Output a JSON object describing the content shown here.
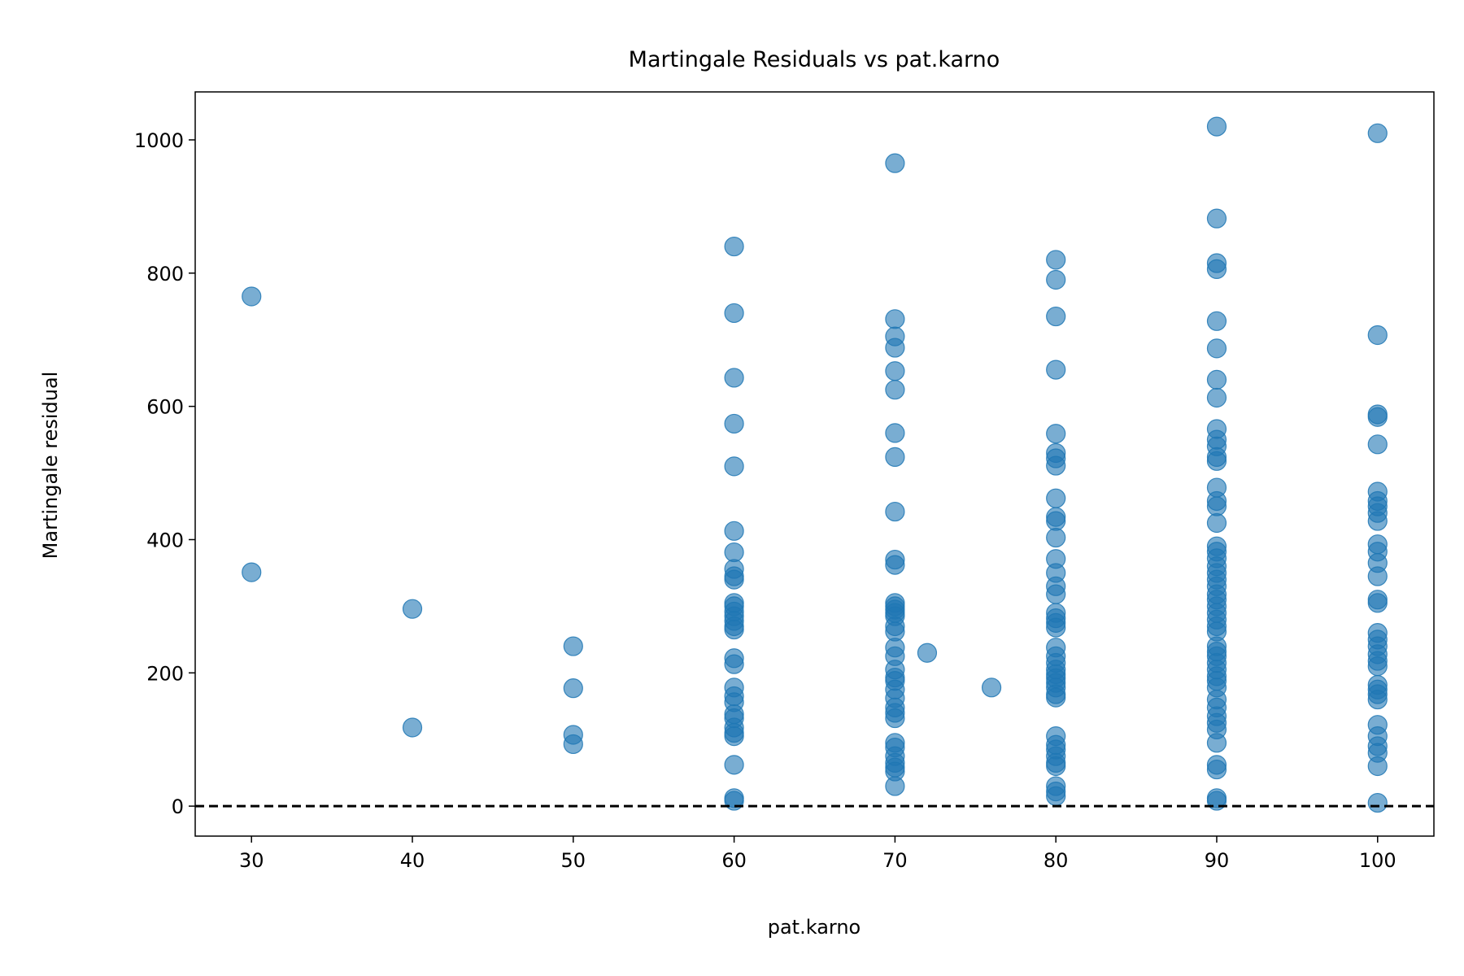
{
  "chart_data": {
    "type": "scatter",
    "title": "Martingale Residuals vs pat.karno",
    "xlabel": "pat.karno",
    "ylabel": "Martingale residual",
    "xlim": [
      26.5,
      103.5
    ],
    "ylim": [
      -45,
      1072
    ],
    "xticks": [
      30,
      40,
      50,
      60,
      70,
      80,
      90,
      100
    ],
    "yticks": [
      0,
      200,
      400,
      600,
      800,
      1000
    ],
    "grid": false,
    "legend": "none",
    "reference_line": {
      "y": 0,
      "style": "dashed",
      "color": "#000000"
    },
    "point_color": "#1f77b4",
    "series": [
      {
        "points": [
          {
            "x": 30,
            "y": 765
          },
          {
            "x": 30,
            "y": 351
          },
          {
            "x": 40,
            "y": 296
          },
          {
            "x": 40,
            "y": 118
          },
          {
            "x": 50,
            "y": 240
          },
          {
            "x": 50,
            "y": 177
          },
          {
            "x": 50,
            "y": 107
          },
          {
            "x": 50,
            "y": 93
          },
          {
            "x": 60,
            "y": 840
          },
          {
            "x": 60,
            "y": 740
          },
          {
            "x": 60,
            "y": 643
          },
          {
            "x": 60,
            "y": 574
          },
          {
            "x": 60,
            "y": 510
          },
          {
            "x": 60,
            "y": 413
          },
          {
            "x": 60,
            "y": 381
          },
          {
            "x": 60,
            "y": 356
          },
          {
            "x": 60,
            "y": 345
          },
          {
            "x": 60,
            "y": 340
          },
          {
            "x": 60,
            "y": 305
          },
          {
            "x": 60,
            "y": 300
          },
          {
            "x": 60,
            "y": 292
          },
          {
            "x": 60,
            "y": 285
          },
          {
            "x": 60,
            "y": 278
          },
          {
            "x": 60,
            "y": 270
          },
          {
            "x": 60,
            "y": 265
          },
          {
            "x": 60,
            "y": 222
          },
          {
            "x": 60,
            "y": 213
          },
          {
            "x": 60,
            "y": 178
          },
          {
            "x": 60,
            "y": 165
          },
          {
            "x": 60,
            "y": 156
          },
          {
            "x": 60,
            "y": 138
          },
          {
            "x": 60,
            "y": 132
          },
          {
            "x": 60,
            "y": 118
          },
          {
            "x": 60,
            "y": 110
          },
          {
            "x": 60,
            "y": 105
          },
          {
            "x": 60,
            "y": 62
          },
          {
            "x": 60,
            "y": 12
          },
          {
            "x": 60,
            "y": 8
          },
          {
            "x": 70,
            "y": 965
          },
          {
            "x": 70,
            "y": 731
          },
          {
            "x": 70,
            "y": 705
          },
          {
            "x": 70,
            "y": 688
          },
          {
            "x": 70,
            "y": 653
          },
          {
            "x": 70,
            "y": 625
          },
          {
            "x": 70,
            "y": 560
          },
          {
            "x": 70,
            "y": 524
          },
          {
            "x": 70,
            "y": 442
          },
          {
            "x": 70,
            "y": 370
          },
          {
            "x": 70,
            "y": 362
          },
          {
            "x": 70,
            "y": 305
          },
          {
            "x": 70,
            "y": 300
          },
          {
            "x": 70,
            "y": 295
          },
          {
            "x": 70,
            "y": 290
          },
          {
            "x": 70,
            "y": 285
          },
          {
            "x": 70,
            "y": 270
          },
          {
            "x": 70,
            "y": 262
          },
          {
            "x": 70,
            "y": 238
          },
          {
            "x": 70,
            "y": 225
          },
          {
            "x": 70,
            "y": 205
          },
          {
            "x": 70,
            "y": 193
          },
          {
            "x": 70,
            "y": 188
          },
          {
            "x": 70,
            "y": 175
          },
          {
            "x": 70,
            "y": 162
          },
          {
            "x": 70,
            "y": 148
          },
          {
            "x": 70,
            "y": 140
          },
          {
            "x": 70,
            "y": 132
          },
          {
            "x": 70,
            "y": 95
          },
          {
            "x": 70,
            "y": 88
          },
          {
            "x": 70,
            "y": 75
          },
          {
            "x": 70,
            "y": 65
          },
          {
            "x": 70,
            "y": 58
          },
          {
            "x": 70,
            "y": 52
          },
          {
            "x": 70,
            "y": 30
          },
          {
            "x": 72,
            "y": 230
          },
          {
            "x": 76,
            "y": 178
          },
          {
            "x": 80,
            "y": 820
          },
          {
            "x": 80,
            "y": 790
          },
          {
            "x": 80,
            "y": 735
          },
          {
            "x": 80,
            "y": 655
          },
          {
            "x": 80,
            "y": 559
          },
          {
            "x": 80,
            "y": 530
          },
          {
            "x": 80,
            "y": 522
          },
          {
            "x": 80,
            "y": 511
          },
          {
            "x": 80,
            "y": 462
          },
          {
            "x": 80,
            "y": 434
          },
          {
            "x": 80,
            "y": 428
          },
          {
            "x": 80,
            "y": 403
          },
          {
            "x": 80,
            "y": 371
          },
          {
            "x": 80,
            "y": 350
          },
          {
            "x": 80,
            "y": 330
          },
          {
            "x": 80,
            "y": 318
          },
          {
            "x": 80,
            "y": 290
          },
          {
            "x": 80,
            "y": 282
          },
          {
            "x": 80,
            "y": 275
          },
          {
            "x": 80,
            "y": 268
          },
          {
            "x": 80,
            "y": 238
          },
          {
            "x": 80,
            "y": 225
          },
          {
            "x": 80,
            "y": 215
          },
          {
            "x": 80,
            "y": 205
          },
          {
            "x": 80,
            "y": 198
          },
          {
            "x": 80,
            "y": 192
          },
          {
            "x": 80,
            "y": 185
          },
          {
            "x": 80,
            "y": 178
          },
          {
            "x": 80,
            "y": 168
          },
          {
            "x": 80,
            "y": 163
          },
          {
            "x": 80,
            "y": 105
          },
          {
            "x": 80,
            "y": 92
          },
          {
            "x": 80,
            "y": 85
          },
          {
            "x": 80,
            "y": 75
          },
          {
            "x": 80,
            "y": 65
          },
          {
            "x": 80,
            "y": 60
          },
          {
            "x": 80,
            "y": 30
          },
          {
            "x": 80,
            "y": 22
          },
          {
            "x": 80,
            "y": 15
          },
          {
            "x": 90,
            "y": 1020
          },
          {
            "x": 90,
            "y": 882
          },
          {
            "x": 90,
            "y": 815
          },
          {
            "x": 90,
            "y": 806
          },
          {
            "x": 90,
            "y": 728
          },
          {
            "x": 90,
            "y": 687
          },
          {
            "x": 90,
            "y": 640
          },
          {
            "x": 90,
            "y": 613
          },
          {
            "x": 90,
            "y": 566
          },
          {
            "x": 90,
            "y": 550
          },
          {
            "x": 90,
            "y": 540
          },
          {
            "x": 90,
            "y": 524
          },
          {
            "x": 90,
            "y": 518
          },
          {
            "x": 90,
            "y": 478
          },
          {
            "x": 90,
            "y": 458
          },
          {
            "x": 90,
            "y": 450
          },
          {
            "x": 90,
            "y": 425
          },
          {
            "x": 90,
            "y": 390
          },
          {
            "x": 90,
            "y": 382
          },
          {
            "x": 90,
            "y": 372
          },
          {
            "x": 90,
            "y": 360
          },
          {
            "x": 90,
            "y": 350
          },
          {
            "x": 90,
            "y": 340
          },
          {
            "x": 90,
            "y": 330
          },
          {
            "x": 90,
            "y": 318
          },
          {
            "x": 90,
            "y": 310
          },
          {
            "x": 90,
            "y": 300
          },
          {
            "x": 90,
            "y": 290
          },
          {
            "x": 90,
            "y": 280
          },
          {
            "x": 90,
            "y": 270
          },
          {
            "x": 90,
            "y": 262
          },
          {
            "x": 90,
            "y": 240
          },
          {
            "x": 90,
            "y": 232
          },
          {
            "x": 90,
            "y": 225
          },
          {
            "x": 90,
            "y": 215
          },
          {
            "x": 90,
            "y": 205
          },
          {
            "x": 90,
            "y": 195
          },
          {
            "x": 90,
            "y": 188
          },
          {
            "x": 90,
            "y": 178
          },
          {
            "x": 90,
            "y": 160
          },
          {
            "x": 90,
            "y": 148
          },
          {
            "x": 90,
            "y": 135
          },
          {
            "x": 90,
            "y": 125
          },
          {
            "x": 90,
            "y": 115
          },
          {
            "x": 90,
            "y": 95
          },
          {
            "x": 90,
            "y": 62
          },
          {
            "x": 90,
            "y": 55
          },
          {
            "x": 90,
            "y": 12
          },
          {
            "x": 90,
            "y": 8
          },
          {
            "x": 100,
            "y": 1010
          },
          {
            "x": 100,
            "y": 707
          },
          {
            "x": 100,
            "y": 588
          },
          {
            "x": 100,
            "y": 584
          },
          {
            "x": 100,
            "y": 543
          },
          {
            "x": 100,
            "y": 472
          },
          {
            "x": 100,
            "y": 458
          },
          {
            "x": 100,
            "y": 450
          },
          {
            "x": 100,
            "y": 440
          },
          {
            "x": 100,
            "y": 428
          },
          {
            "x": 100,
            "y": 393
          },
          {
            "x": 100,
            "y": 382
          },
          {
            "x": 100,
            "y": 365
          },
          {
            "x": 100,
            "y": 345
          },
          {
            "x": 100,
            "y": 310
          },
          {
            "x": 100,
            "y": 305
          },
          {
            "x": 100,
            "y": 260
          },
          {
            "x": 100,
            "y": 250
          },
          {
            "x": 100,
            "y": 240
          },
          {
            "x": 100,
            "y": 228
          },
          {
            "x": 100,
            "y": 218
          },
          {
            "x": 100,
            "y": 210
          },
          {
            "x": 100,
            "y": 182
          },
          {
            "x": 100,
            "y": 175
          },
          {
            "x": 100,
            "y": 168
          },
          {
            "x": 100,
            "y": 160
          },
          {
            "x": 100,
            "y": 122
          },
          {
            "x": 100,
            "y": 105
          },
          {
            "x": 100,
            "y": 90
          },
          {
            "x": 100,
            "y": 80
          },
          {
            "x": 100,
            "y": 60
          },
          {
            "x": 100,
            "y": 5
          }
        ]
      }
    ]
  }
}
